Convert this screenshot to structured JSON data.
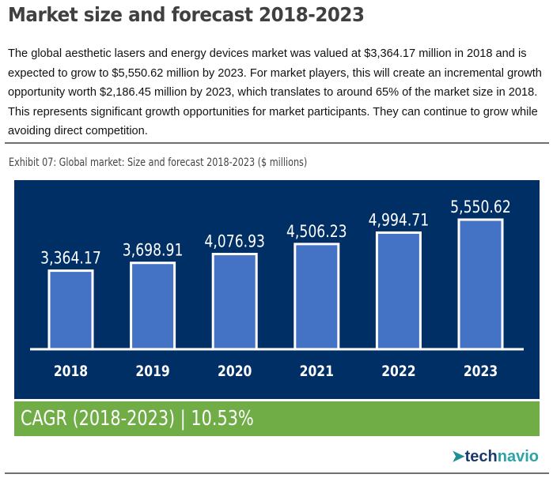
{
  "title": "Market size and forecast 2018-2023",
  "paragraph": "The global aesthetic lasers and energy devices market was valued at $3,364.17 million in 2018 and is expected to grow to $5,550.62 million by 2023. For market players, this will create an incremental growth opportunity worth $2,186.45 million by 2023, which translates to around 65% of the market size in 2018. This represents significant growth opportunities for market participants. They can continue to grow while avoiding direct competition.",
  "exhibit": "Exhibit 07:  Global market: Size and forecast 2018-2023 ($ millions)",
  "cagr": "CAGR (2018-2023) | 10.53%",
  "logo": {
    "part1": "tech",
    "part2": "navio",
    "icon": "arrow-logo-icon"
  },
  "colors": {
    "panel": "#002f66",
    "bar": "#4472c4",
    "cagr": "#70ad47"
  },
  "chart_data": {
    "type": "bar",
    "categories": [
      "2018",
      "2019",
      "2020",
      "2021",
      "2022",
      "2023"
    ],
    "values": [
      3364.17,
      3698.91,
      4076.93,
      4506.23,
      4994.71,
      5550.62
    ],
    "labels": [
      "3,364.17",
      "3,698.91",
      "4,076.93",
      "4,506.23",
      "4,994.71",
      "5,550.62"
    ],
    "ylim": [
      0,
      5550.62
    ],
    "grid": false
  }
}
